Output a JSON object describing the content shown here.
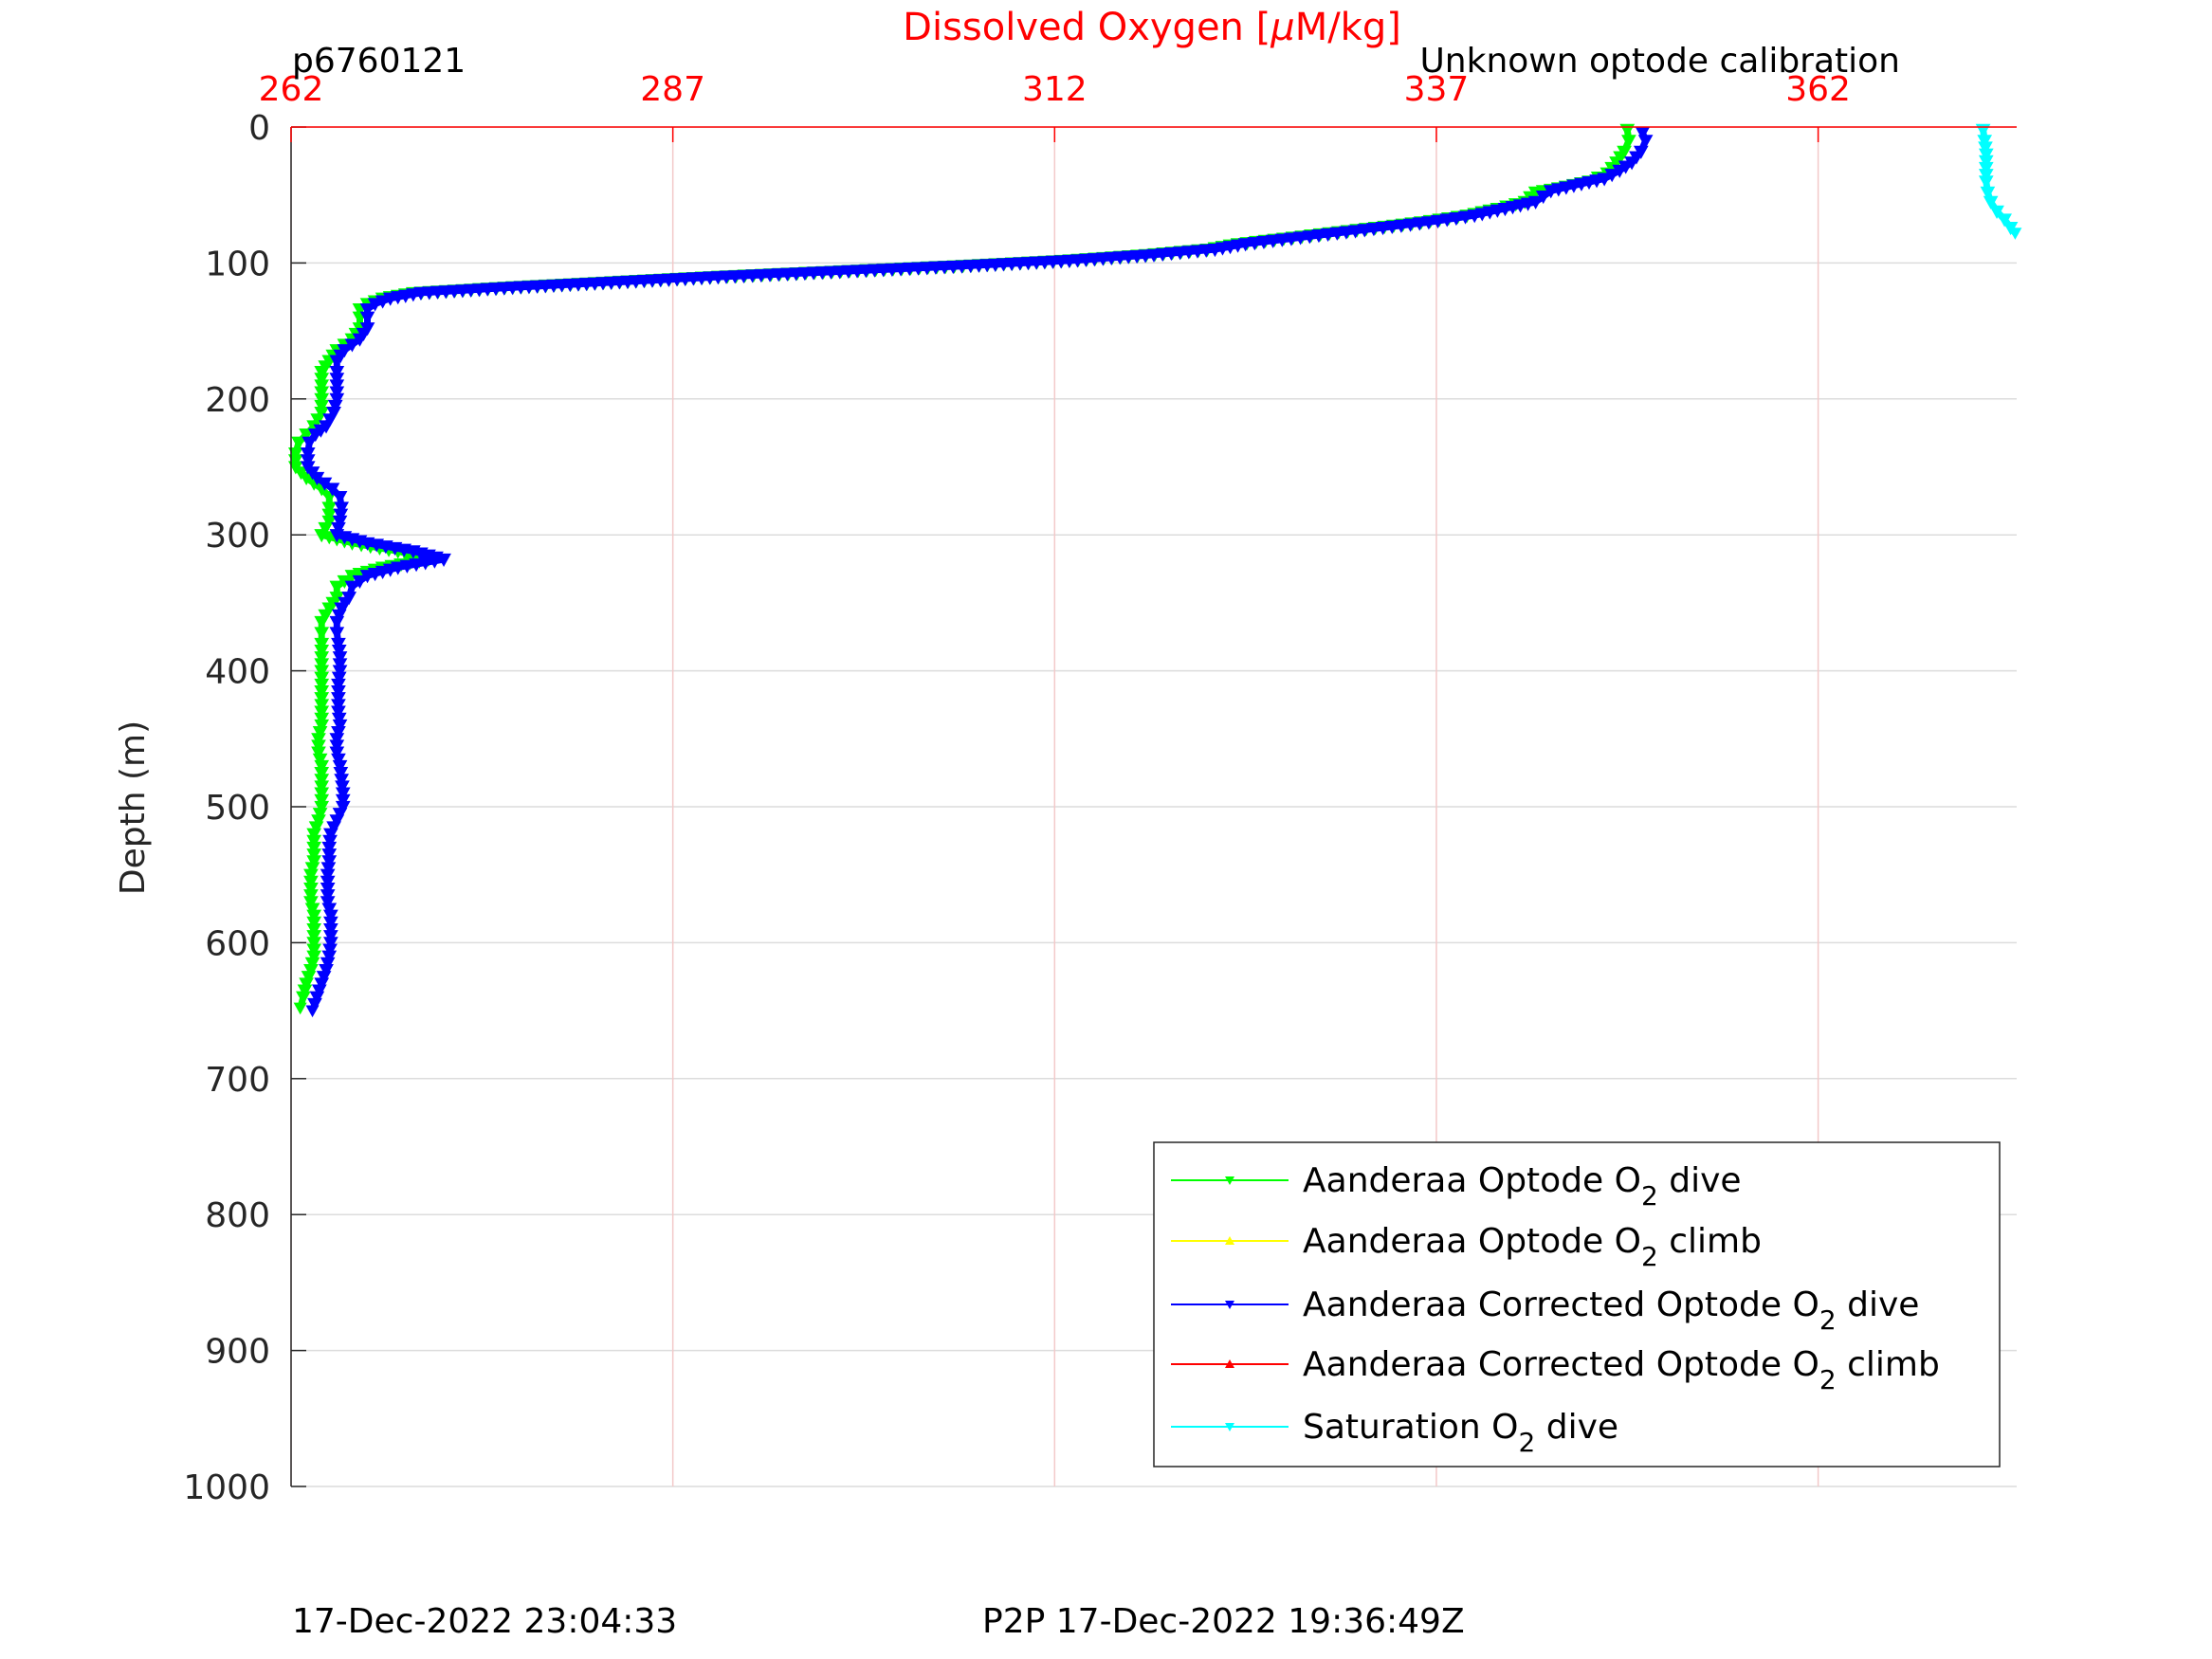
{
  "chart_data": {
    "type": "line",
    "title": "Dissolved Oxygen [μM/kg]",
    "title_parts": {
      "main": "Dissolved Oxygen [",
      "mu": "μ",
      "rest": "M/kg]"
    },
    "top_left_label": "p6760121",
    "top_right_label": "Unknown optode calibration",
    "ylabel": "Depth (m)",
    "xlabel": "",
    "x_axis_position": "top",
    "xlim": [
      262,
      375
    ],
    "ylim": [
      0,
      1000
    ],
    "y_reversed": true,
    "x_ticks": [
      "262",
      "287",
      "312",
      "337",
      "362"
    ],
    "y_ticks": [
      "0",
      "100",
      "200",
      "300",
      "400",
      "500",
      "600",
      "700",
      "800",
      "900",
      "1000"
    ],
    "grid": true,
    "legend_placement": "bottom-right",
    "series": [
      {
        "name": "Aanderaa Optode O2 dive",
        "legend": {
          "pre": "Aanderaa Optode O",
          "sub": "2",
          "post": " dive"
        },
        "color": "#00ff00",
        "marker": "down-triangle",
        "points": [
          [
            349.5,
            2
          ],
          [
            349.6,
            10
          ],
          [
            349.3,
            18
          ],
          [
            348.8,
            26
          ],
          [
            348.2,
            34
          ],
          [
            347,
            40
          ],
          [
            345,
            45
          ],
          [
            343.5,
            48
          ],
          [
            342.8,
            55
          ],
          [
            341,
            60
          ],
          [
            339,
            65
          ],
          [
            336,
            70
          ],
          [
            333,
            74
          ],
          [
            330,
            78
          ],
          [
            327,
            82
          ],
          [
            324,
            86
          ],
          [
            322,
            90
          ],
          [
            318,
            94
          ],
          [
            313,
            98
          ],
          [
            306,
            102
          ],
          [
            298,
            106
          ],
          [
            290,
            110
          ],
          [
            283,
            114
          ],
          [
            276,
            118
          ],
          [
            270,
            122
          ],
          [
            268,
            126
          ],
          [
            267,
            130
          ],
          [
            266.5,
            134
          ],
          [
            266.5,
            140
          ],
          [
            266.5,
            148
          ],
          [
            266,
            156
          ],
          [
            265,
            164
          ],
          [
            264.5,
            172
          ],
          [
            264,
            180
          ],
          [
            264,
            190
          ],
          [
            264,
            200
          ],
          [
            264,
            210
          ],
          [
            263.5,
            220
          ],
          [
            263,
            226
          ],
          [
            262.5,
            232
          ],
          [
            262.3,
            240
          ],
          [
            262.3,
            250
          ],
          [
            263,
            258
          ],
          [
            264,
            266
          ],
          [
            264.5,
            272
          ],
          [
            264.5,
            280
          ],
          [
            264.5,
            290
          ],
          [
            264,
            300
          ],
          [
            266,
            306
          ],
          [
            269,
            312
          ],
          [
            271,
            318
          ],
          [
            268,
            324
          ],
          [
            266,
            330
          ],
          [
            265,
            338
          ],
          [
            265,
            346
          ],
          [
            264.5,
            354
          ],
          [
            264,
            364
          ],
          [
            264,
            372
          ],
          [
            264,
            380
          ],
          [
            264,
            390
          ],
          [
            264,
            400
          ],
          [
            264,
            410
          ],
          [
            264,
            420
          ],
          [
            264,
            430
          ],
          [
            264,
            440
          ],
          [
            263.8,
            450
          ],
          [
            263.8,
            460
          ],
          [
            264,
            470
          ],
          [
            264,
            480
          ],
          [
            264,
            490
          ],
          [
            264,
            500
          ],
          [
            263.8,
            510
          ],
          [
            263.5,
            520
          ],
          [
            263.5,
            530
          ],
          [
            263.5,
            540
          ],
          [
            263.3,
            550
          ],
          [
            263.3,
            560
          ],
          [
            263.3,
            570
          ],
          [
            263.5,
            580
          ],
          [
            263.5,
            590
          ],
          [
            263.5,
            600
          ],
          [
            263.5,
            610
          ],
          [
            263.3,
            620
          ],
          [
            263,
            630
          ],
          [
            262.8,
            640
          ],
          [
            262.6,
            648
          ]
        ]
      },
      {
        "name": "Aanderaa Optode O2 climb",
        "legend": {
          "pre": "Aanderaa Optode O",
          "sub": "2",
          "post": " climb"
        },
        "color": "#ffff00",
        "marker": "up-triangle",
        "points": []
      },
      {
        "name": "Aanderaa Corrected Optode O2 dive",
        "legend": {
          "pre": "Aanderaa Corrected Optode O",
          "sub": "2",
          "post": " dive"
        },
        "color": "#0000ff",
        "marker": "down-triangle",
        "points": [
          [
            350.5,
            4
          ],
          [
            350.7,
            10
          ],
          [
            350.4,
            18
          ],
          [
            349.8,
            26
          ],
          [
            349,
            32
          ],
          [
            348,
            38
          ],
          [
            346,
            43
          ],
          [
            344.5,
            47
          ],
          [
            343.5,
            55
          ],
          [
            341.5,
            60
          ],
          [
            339.5,
            65
          ],
          [
            336.5,
            70
          ],
          [
            333.5,
            74
          ],
          [
            330.5,
            78
          ],
          [
            327.5,
            82
          ],
          [
            324.5,
            86
          ],
          [
            322.5,
            90
          ],
          [
            318.5,
            94
          ],
          [
            313.5,
            98
          ],
          [
            306.5,
            102
          ],
          [
            298.5,
            106
          ],
          [
            290.5,
            110
          ],
          [
            283.5,
            114
          ],
          [
            276.5,
            118
          ],
          [
            270.5,
            122
          ],
          [
            268.5,
            126
          ],
          [
            267.5,
            130
          ],
          [
            267,
            134
          ],
          [
            267,
            140
          ],
          [
            267,
            148
          ],
          [
            266.5,
            156
          ],
          [
            265.5,
            164
          ],
          [
            265,
            172
          ],
          [
            265,
            180
          ],
          [
            265,
            190
          ],
          [
            265,
            200
          ],
          [
            264.8,
            210
          ],
          [
            264.3,
            220
          ],
          [
            263.6,
            226
          ],
          [
            263.2,
            232
          ],
          [
            263.1,
            240
          ],
          [
            263.1,
            250
          ],
          [
            263.7,
            258
          ],
          [
            264.7,
            266
          ],
          [
            265.2,
            272
          ],
          [
            265.3,
            280
          ],
          [
            265.2,
            290
          ],
          [
            265,
            300
          ],
          [
            267,
            306
          ],
          [
            270,
            312
          ],
          [
            272,
            318
          ],
          [
            269,
            324
          ],
          [
            267,
            330
          ],
          [
            266,
            338
          ],
          [
            265.8,
            346
          ],
          [
            265.3,
            354
          ],
          [
            265,
            364
          ],
          [
            265,
            372
          ],
          [
            265.1,
            380
          ],
          [
            265.2,
            390
          ],
          [
            265.2,
            400
          ],
          [
            265.1,
            410
          ],
          [
            265.1,
            420
          ],
          [
            265.1,
            430
          ],
          [
            265.2,
            440
          ],
          [
            265,
            450
          ],
          [
            265,
            460
          ],
          [
            265.2,
            470
          ],
          [
            265.3,
            480
          ],
          [
            265.4,
            490
          ],
          [
            265.4,
            500
          ],
          [
            265,
            510
          ],
          [
            264.6,
            520
          ],
          [
            264.5,
            530
          ],
          [
            264.5,
            540
          ],
          [
            264.4,
            550
          ],
          [
            264.4,
            560
          ],
          [
            264.4,
            570
          ],
          [
            264.6,
            580
          ],
          [
            264.6,
            590
          ],
          [
            264.6,
            600
          ],
          [
            264.5,
            610
          ],
          [
            264.3,
            620
          ],
          [
            264,
            630
          ],
          [
            263.7,
            640
          ],
          [
            263.4,
            650
          ]
        ]
      },
      {
        "name": "Aanderaa Corrected Optode O2 climb",
        "legend": {
          "pre": "Aanderaa Corrected Optode O",
          "sub": "2",
          "post": " climb"
        },
        "color": "#ff0000",
        "marker": "up-triangle",
        "points": []
      },
      {
        "name": "Saturation O2 dive",
        "legend": {
          "pre": "Saturation O",
          "sub": "2",
          "post": " dive"
        },
        "color": "#00ffff",
        "marker": "down-triangle",
        "points": [
          [
            372.8,
            2
          ],
          [
            372.9,
            10
          ],
          [
            373,
            20
          ],
          [
            373,
            30
          ],
          [
            373,
            40
          ],
          [
            373.1,
            48
          ],
          [
            373.3,
            55
          ],
          [
            373.7,
            62
          ],
          [
            374.2,
            68
          ],
          [
            374.6,
            74
          ],
          [
            374.9,
            78
          ]
        ]
      }
    ]
  },
  "footer": {
    "left": "17-Dec-2022 23:04:33",
    "center": "P2P 17-Dec-2022 19:36:49Z"
  },
  "colors": {
    "axis": "#262626",
    "x_axis": "#ff0000",
    "grid_vertical": "#f3c9c9",
    "grid_horizontal": "#dcdcdc"
  }
}
